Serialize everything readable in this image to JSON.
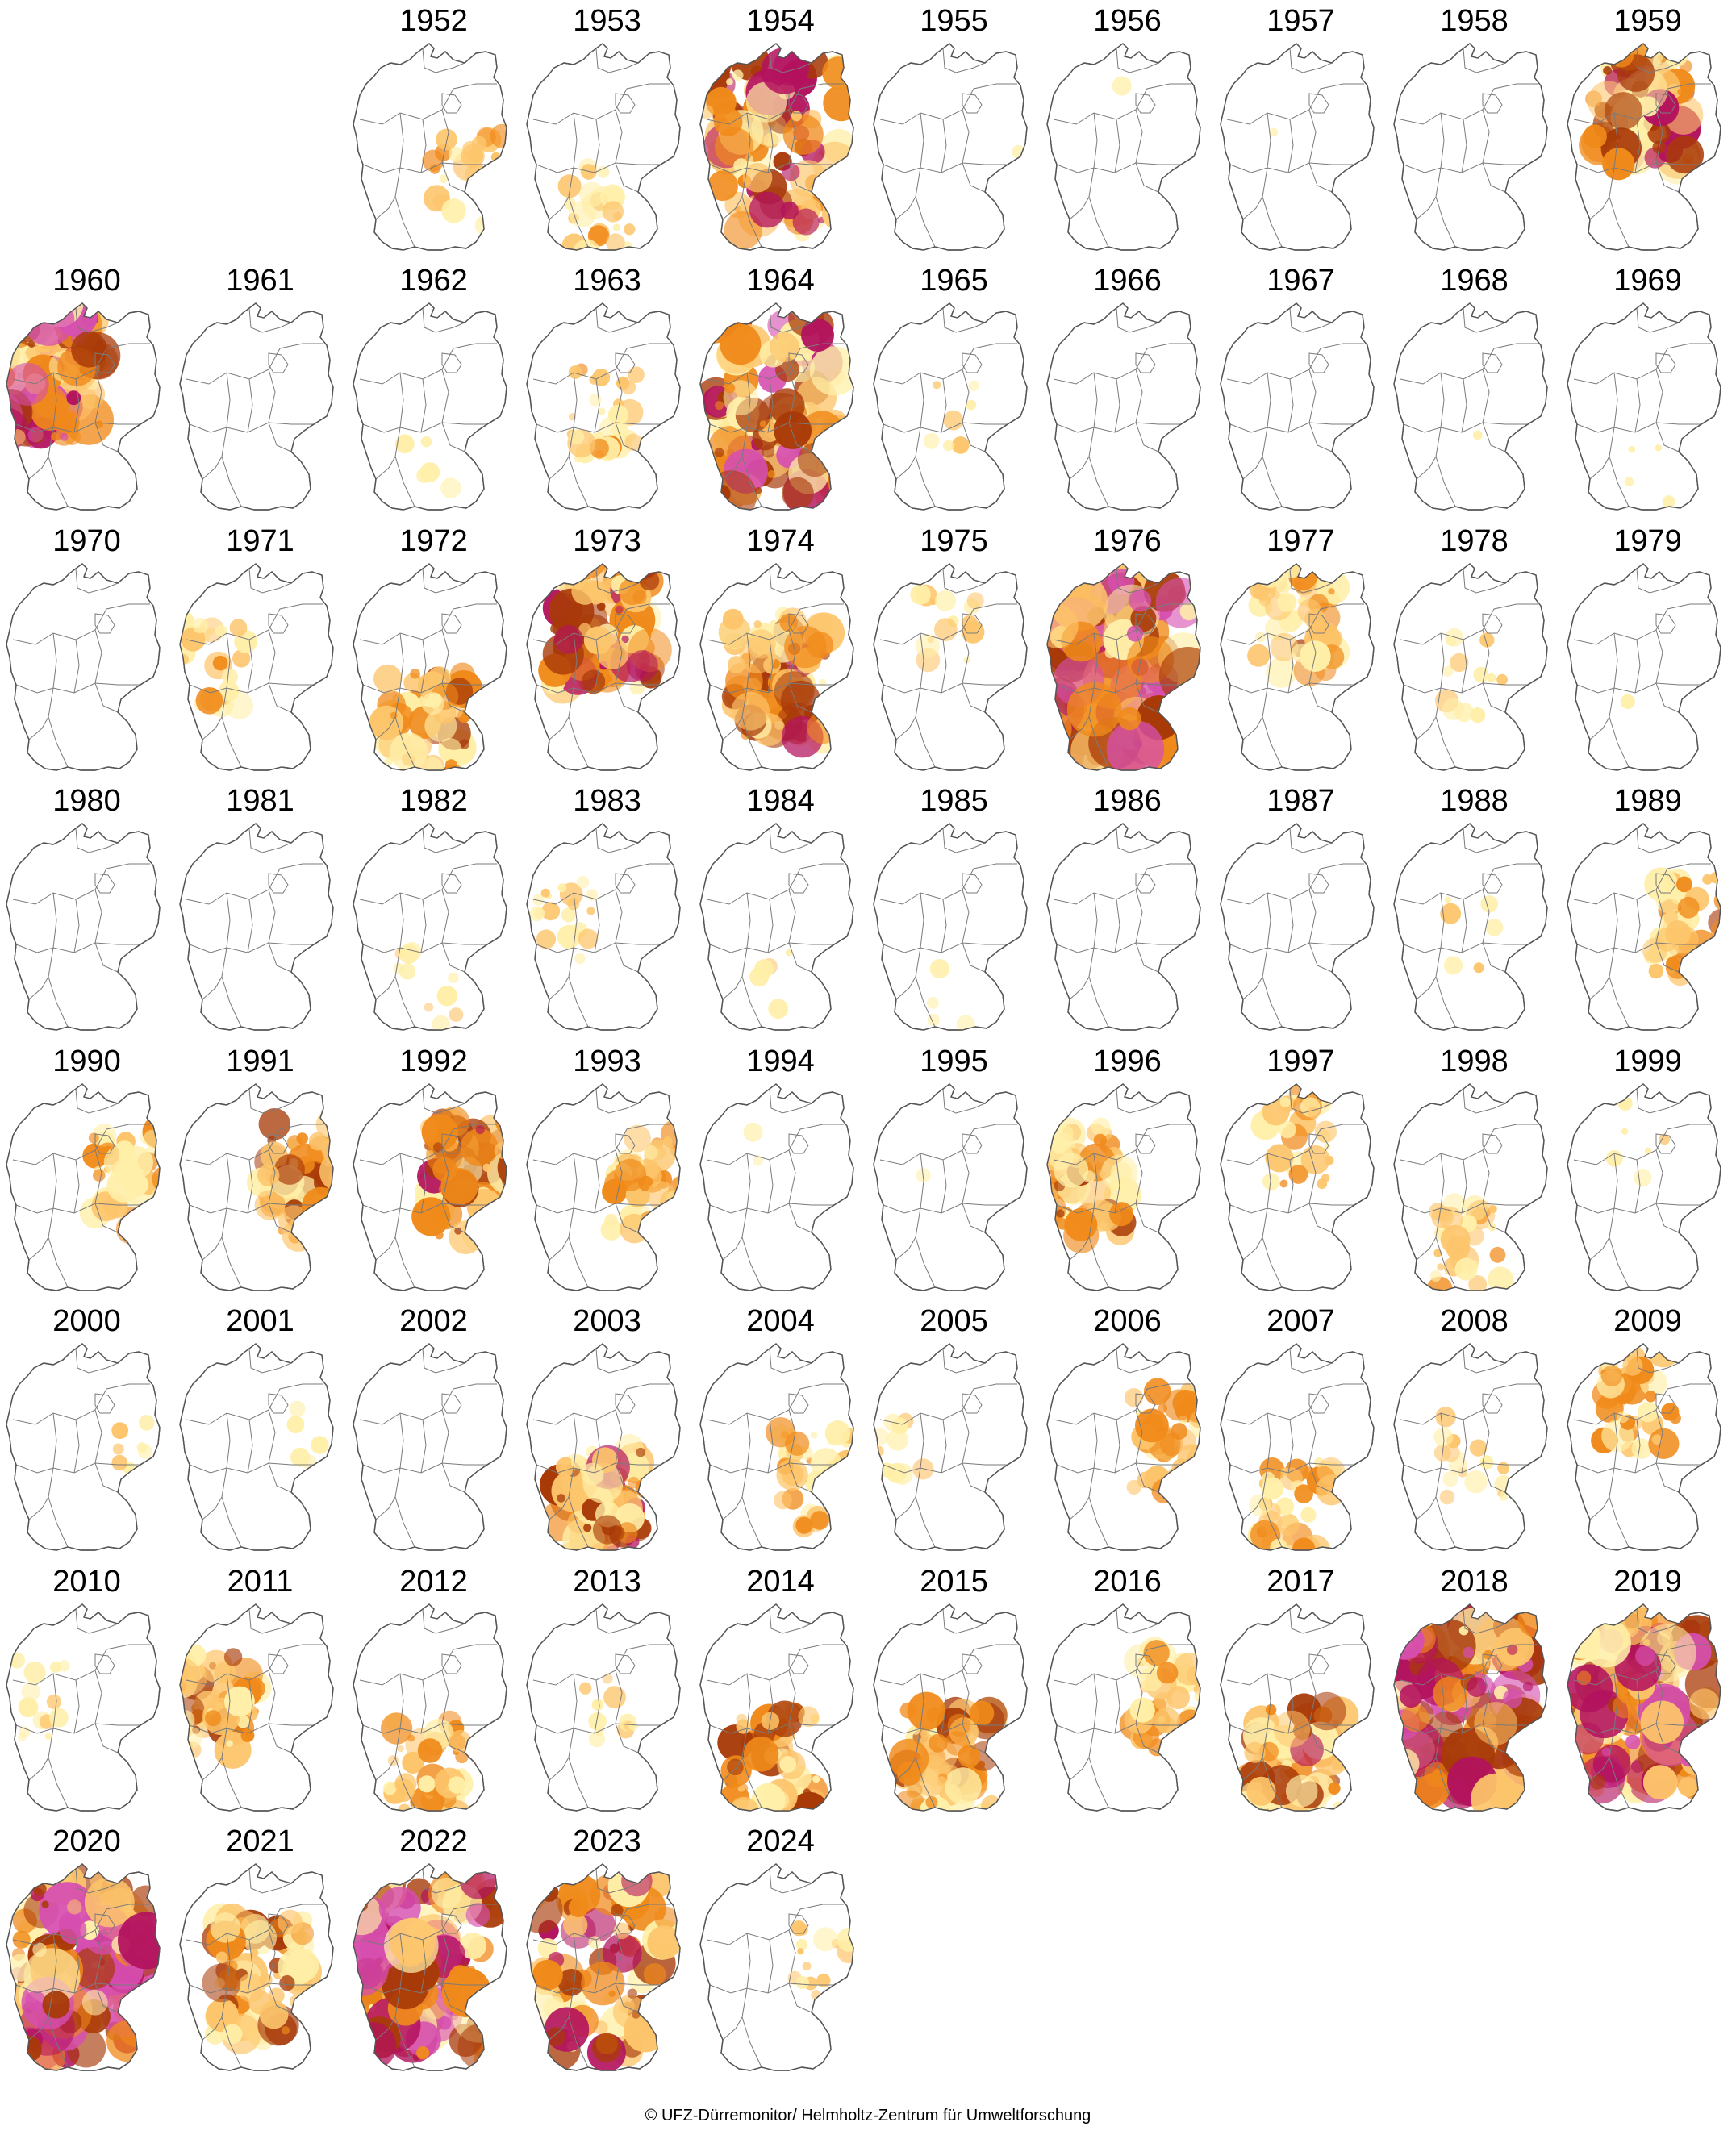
{
  "title": "",
  "copyright": "© UFZ-Dürremonitor/ Helmholtz-Zentrum für Umweltforschung",
  "palette": {
    "none": "#ffffff",
    "abnormally_dry": "#ffefa8",
    "moderate": "#fdc56b",
    "severe": "#f08a1a",
    "extreme": "#a83a08",
    "exceptional": "#b3125e",
    "exceptional_plus": "#d64fb0"
  },
  "maps": [
    {
      "year": "1952",
      "intensity": 0.25,
      "focus": "east-south"
    },
    {
      "year": "1953",
      "intensity": 0.2,
      "focus": "south"
    },
    {
      "year": "1954",
      "intensity": 0.7,
      "focus": "all"
    },
    {
      "year": "1955",
      "intensity": 0.01,
      "focus": "east"
    },
    {
      "year": "1956",
      "intensity": 0.01,
      "focus": "north"
    },
    {
      "year": "1957",
      "intensity": 0.01,
      "focus": "north"
    },
    {
      "year": "1958",
      "intensity": 0.0,
      "focus": "none"
    },
    {
      "year": "1959",
      "intensity": 0.65,
      "focus": "north"
    },
    {
      "year": "1960",
      "intensity": 0.85,
      "focus": "north-west"
    },
    {
      "year": "1961",
      "intensity": 0.0,
      "focus": "none"
    },
    {
      "year": "1962",
      "intensity": 0.04,
      "focus": "south"
    },
    {
      "year": "1963",
      "intensity": 0.25,
      "focus": "center"
    },
    {
      "year": "1964",
      "intensity": 0.8,
      "focus": "all"
    },
    {
      "year": "1965",
      "intensity": 0.06,
      "focus": "center"
    },
    {
      "year": "1966",
      "intensity": 0.0,
      "focus": "none"
    },
    {
      "year": "1967",
      "intensity": 0.0,
      "focus": "none"
    },
    {
      "year": "1968",
      "intensity": 0.01,
      "focus": "south"
    },
    {
      "year": "1969",
      "intensity": 0.03,
      "focus": "south"
    },
    {
      "year": "1970",
      "intensity": 0.0,
      "focus": "none"
    },
    {
      "year": "1971",
      "intensity": 0.22,
      "focus": "west"
    },
    {
      "year": "1972",
      "intensity": 0.45,
      "focus": "south"
    },
    {
      "year": "1973",
      "intensity": 0.7,
      "focus": "north"
    },
    {
      "year": "1974",
      "intensity": 0.6,
      "focus": "center"
    },
    {
      "year": "1975",
      "intensity": 0.12,
      "focus": "north"
    },
    {
      "year": "1976",
      "intensity": 0.95,
      "focus": "all"
    },
    {
      "year": "1977",
      "intensity": 0.4,
      "focus": "north"
    },
    {
      "year": "1978",
      "intensity": 0.1,
      "focus": "center"
    },
    {
      "year": "1979",
      "intensity": 0.01,
      "focus": "south"
    },
    {
      "year": "1980",
      "intensity": 0.0,
      "focus": "none"
    },
    {
      "year": "1981",
      "intensity": 0.0,
      "focus": "none"
    },
    {
      "year": "1982",
      "intensity": 0.08,
      "focus": "south"
    },
    {
      "year": "1983",
      "intensity": 0.15,
      "focus": "west"
    },
    {
      "year": "1984",
      "intensity": 0.04,
      "focus": "south"
    },
    {
      "year": "1985",
      "intensity": 0.03,
      "focus": "south"
    },
    {
      "year": "1986",
      "intensity": 0.0,
      "focus": "none"
    },
    {
      "year": "1987",
      "intensity": 0.0,
      "focus": "none"
    },
    {
      "year": "1988",
      "intensity": 0.05,
      "focus": "center"
    },
    {
      "year": "1989",
      "intensity": 0.4,
      "focus": "east"
    },
    {
      "year": "1990",
      "intensity": 0.35,
      "focus": "east"
    },
    {
      "year": "1991",
      "intensity": 0.5,
      "focus": "east"
    },
    {
      "year": "1992",
      "intensity": 0.6,
      "focus": "east"
    },
    {
      "year": "1993",
      "intensity": 0.35,
      "focus": "east"
    },
    {
      "year": "1994",
      "intensity": 0.02,
      "focus": "north"
    },
    {
      "year": "1995",
      "intensity": 0.01,
      "focus": "west"
    },
    {
      "year": "1996",
      "intensity": 0.45,
      "focus": "west"
    },
    {
      "year": "1997",
      "intensity": 0.25,
      "focus": "north"
    },
    {
      "year": "1998",
      "intensity": 0.25,
      "focus": "south"
    },
    {
      "year": "1999",
      "intensity": 0.06,
      "focus": "north"
    },
    {
      "year": "2000",
      "intensity": 0.06,
      "focus": "east"
    },
    {
      "year": "2001",
      "intensity": 0.05,
      "focus": "east"
    },
    {
      "year": "2002",
      "intensity": 0.0,
      "focus": "none"
    },
    {
      "year": "2003",
      "intensity": 0.6,
      "focus": "south"
    },
    {
      "year": "2004",
      "intensity": 0.3,
      "focus": "east-south"
    },
    {
      "year": "2005",
      "intensity": 0.08,
      "focus": "west"
    },
    {
      "year": "2006",
      "intensity": 0.35,
      "focus": "east"
    },
    {
      "year": "2007",
      "intensity": 0.3,
      "focus": "south"
    },
    {
      "year": "2008",
      "intensity": 0.15,
      "focus": "center"
    },
    {
      "year": "2009",
      "intensity": 0.35,
      "focus": "north"
    },
    {
      "year": "2010",
      "intensity": 0.12,
      "focus": "west"
    },
    {
      "year": "2011",
      "intensity": 0.45,
      "focus": "west"
    },
    {
      "year": "2012",
      "intensity": 0.35,
      "focus": "south"
    },
    {
      "year": "2013",
      "intensity": 0.1,
      "focus": "center"
    },
    {
      "year": "2014",
      "intensity": 0.5,
      "focus": "south"
    },
    {
      "year": "2015",
      "intensity": 0.55,
      "focus": "south"
    },
    {
      "year": "2016",
      "intensity": 0.35,
      "focus": "east"
    },
    {
      "year": "2017",
      "intensity": 0.55,
      "focus": "south"
    },
    {
      "year": "2018",
      "intensity": 0.9,
      "focus": "all"
    },
    {
      "year": "2019",
      "intensity": 0.95,
      "focus": "all"
    },
    {
      "year": "2020",
      "intensity": 0.9,
      "focus": "all"
    },
    {
      "year": "2021",
      "intensity": 0.55,
      "focus": "center"
    },
    {
      "year": "2022",
      "intensity": 0.92,
      "focus": "all"
    },
    {
      "year": "2023",
      "intensity": 0.65,
      "focus": "all"
    },
    {
      "year": "2024",
      "intensity": 0.12,
      "focus": "east"
    }
  ]
}
